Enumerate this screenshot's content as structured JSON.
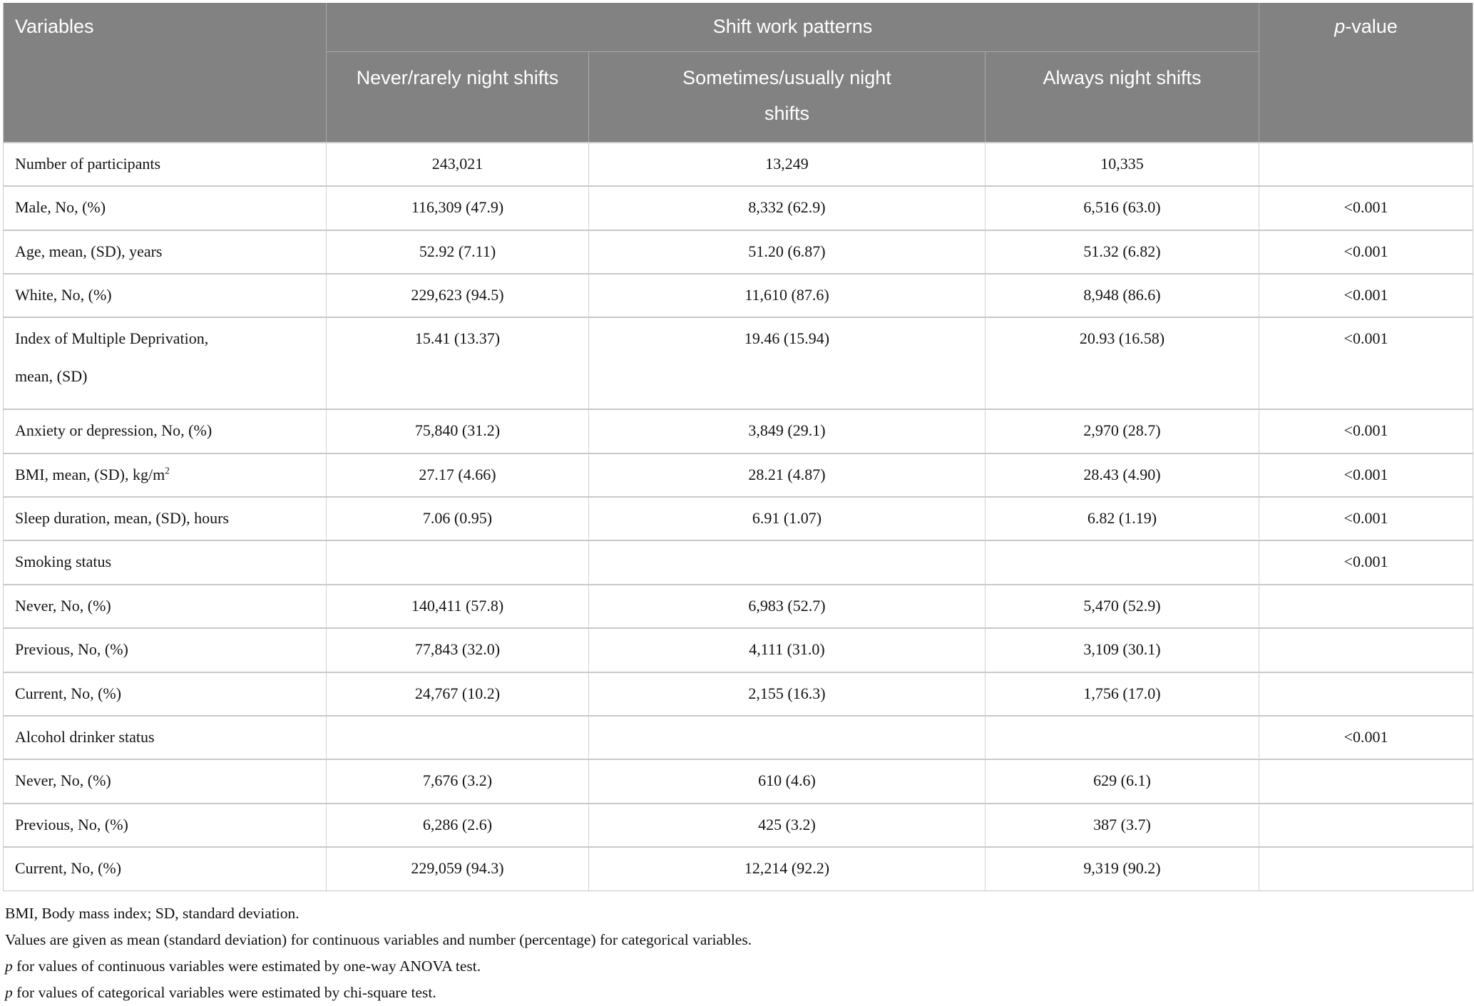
{
  "table": {
    "header": {
      "variables_label": "Variables",
      "group_label": "Shift work patterns",
      "subcols": [
        "Never/rarely night shifts",
        "Sometimes/usually night shifts",
        "Always night shifts"
      ],
      "pvalue_italic": "p",
      "pvalue_rest": "-value"
    },
    "rows": [
      {
        "label": "Number of participants",
        "values": [
          "243,021",
          "13,249",
          "10,335",
          ""
        ]
      },
      {
        "label": "Male, No, (%)",
        "values": [
          "116,309 (47.9)",
          "8,332 (62.9)",
          "6,516 (63.0)",
          "<0.001"
        ]
      },
      {
        "label": "Age, mean, (SD), years",
        "values": [
          "52.92 (7.11)",
          "51.20 (6.87)",
          "51.32 (6.82)",
          "<0.001"
        ]
      },
      {
        "label": "White, No, (%)",
        "values": [
          "229,623 (94.5)",
          "11,610 (87.6)",
          "8,948 (86.6)",
          "<0.001"
        ]
      },
      {
        "label": "Index of Multiple Deprivation,",
        "label2": "mean, (SD)",
        "values": [
          "15.41 (13.37)",
          "19.46 (15.94)",
          "20.93 (16.58)",
          "<0.001"
        ]
      },
      {
        "label": "Anxiety or depression, No, (%)",
        "values": [
          "75,840 (31.2)",
          "3,849 (29.1)",
          "2,970 (28.7)",
          "<0.001"
        ]
      },
      {
        "label": "BMI, mean, (SD), kg/m",
        "sup": "2",
        "values": [
          "27.17 (4.66)",
          "28.21 (4.87)",
          "28.43 (4.90)",
          "<0.001"
        ]
      },
      {
        "label": "Sleep duration, mean, (SD), hours",
        "values": [
          "7.06 (0.95)",
          "6.91 (1.07)",
          "6.82 (1.19)",
          "<0.001"
        ]
      },
      {
        "label": "Smoking status",
        "values": [
          "",
          "",
          "",
          "<0.001"
        ]
      },
      {
        "label": "Never, No, (%)",
        "values": [
          "140,411 (57.8)",
          "6,983 (52.7)",
          "5,470 (52.9)",
          ""
        ]
      },
      {
        "label": "Previous, No, (%)",
        "values": [
          "77,843 (32.0)",
          "4,111 (31.0)",
          "3,109 (30.1)",
          ""
        ]
      },
      {
        "label": "Current, No, (%)",
        "values": [
          "24,767 (10.2)",
          "2,155 (16.3)",
          "1,756 (17.0)",
          ""
        ]
      },
      {
        "label": "Alcohol drinker status",
        "values": [
          "",
          "",
          "",
          "<0.001"
        ]
      },
      {
        "label": "Never, No, (%)",
        "values": [
          "7,676 (3.2)",
          "610 (4.6)",
          "629 (6.1)",
          ""
        ]
      },
      {
        "label": "Previous, No, (%)",
        "values": [
          "6,286 (2.6)",
          "425 (3.2)",
          "387 (3.7)",
          ""
        ]
      },
      {
        "label": "Current, No, (%)",
        "values": [
          "229,059 (94.3)",
          "12,214 (92.2)",
          "9,319 (90.2)",
          ""
        ]
      }
    ],
    "footnotes": [
      {
        "italic_prefix": "",
        "text": "BMI, Body mass index; SD, standard deviation."
      },
      {
        "italic_prefix": "",
        "text": "Values are given as mean (standard deviation) for continuous variables and number (percentage) for categorical variables."
      },
      {
        "italic_prefix": "p",
        "text": " for values of continuous variables were estimated by one-way ANOVA test."
      },
      {
        "italic_prefix": "p",
        "text": " for values of categorical variables were estimated by chi-square test."
      }
    ]
  }
}
